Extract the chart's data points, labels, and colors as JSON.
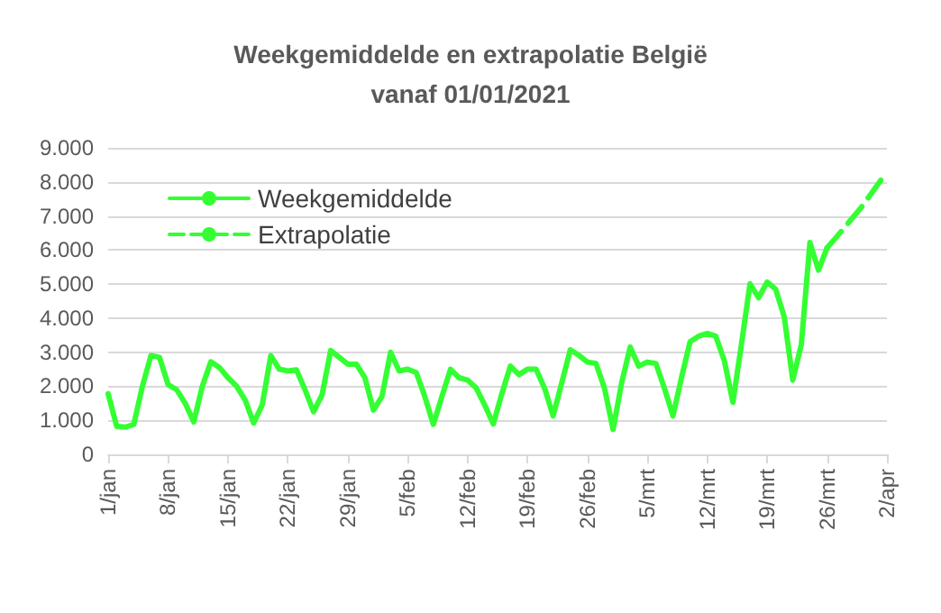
{
  "chart_data": {
    "type": "line",
    "title": "Weekgemiddelde en extrapolatie België\nvanaf 01/01/2021",
    "categories": [
      "1/jan",
      null,
      null,
      null,
      null,
      null,
      null,
      "8/jan",
      null,
      null,
      null,
      null,
      null,
      null,
      "15/jan",
      null,
      null,
      null,
      null,
      null,
      null,
      "22/jan",
      null,
      null,
      null,
      null,
      null,
      null,
      "29/jan",
      null,
      null,
      null,
      null,
      null,
      null,
      "5/feb",
      null,
      null,
      null,
      null,
      null,
      null,
      "12/feb",
      null,
      null,
      null,
      null,
      null,
      null,
      "19/feb",
      null,
      null,
      null,
      null,
      null,
      null,
      "26/feb",
      null,
      null,
      null,
      null,
      null,
      null,
      "5/mrt",
      null,
      null,
      null,
      null,
      null,
      null,
      "12/mrt",
      null,
      null,
      null,
      null,
      null,
      null,
      "19/mrt",
      null,
      null,
      null,
      null,
      null,
      null,
      "26/mrt",
      null,
      null,
      null,
      null,
      null,
      null,
      "2/apr"
    ],
    "series": [
      {
        "name": "Weekgemiddelde",
        "color": "#33ff33",
        "line_style": "solid",
        "values": [
          1780,
          820,
          800,
          880,
          2000,
          2900,
          2850,
          2050,
          1900,
          1500,
          950,
          2000,
          2720,
          2550,
          2250,
          2000,
          1600,
          920,
          1450,
          2900,
          2500,
          2450,
          2480,
          1900,
          1250,
          1750,
          3050,
          2850,
          2650,
          2650,
          2250,
          1300,
          1700,
          3000,
          2450,
          2500,
          2400,
          1700,
          880,
          1700,
          2500,
          2250,
          2180,
          1950,
          1450,
          890,
          1780,
          2590,
          2340,
          2500,
          2500,
          1940,
          1130,
          2100,
          3070,
          2910,
          2710,
          2670,
          1940,
          730,
          2100,
          3150,
          2590,
          2710,
          2670,
          1940,
          1130,
          2260,
          3310,
          3470,
          3550,
          3470,
          2750,
          1530,
          3230,
          5010,
          4600,
          5060,
          4850,
          4040,
          2180,
          3230,
          6220,
          5410,
          6060,
          null,
          null,
          null,
          null,
          null,
          null,
          null
        ]
      },
      {
        "name": "Extrapolatie",
        "color": "#33ff33",
        "line_style": "dashed",
        "values": [
          null,
          null,
          null,
          null,
          null,
          null,
          null,
          null,
          null,
          null,
          null,
          null,
          null,
          null,
          null,
          null,
          null,
          null,
          null,
          null,
          null,
          null,
          null,
          null,
          null,
          null,
          null,
          null,
          null,
          null,
          null,
          null,
          null,
          null,
          null,
          null,
          null,
          null,
          null,
          null,
          null,
          null,
          null,
          null,
          null,
          null,
          null,
          null,
          null,
          null,
          null,
          null,
          null,
          null,
          null,
          null,
          null,
          null,
          null,
          null,
          null,
          null,
          null,
          null,
          null,
          null,
          null,
          null,
          null,
          null,
          null,
          null,
          null,
          null,
          null,
          null,
          null,
          null,
          null,
          null,
          null,
          null,
          null,
          null,
          6060,
          6350,
          6650,
          6950,
          7250,
          7600,
          7950,
          8300
        ]
      }
    ],
    "ylim": [
      0,
      9000
    ],
    "yticks": [
      {
        "value": 0,
        "label": "0"
      },
      {
        "value": 1000,
        "label": "1.000"
      },
      {
        "value": 2000,
        "label": "2.000"
      },
      {
        "value": 3000,
        "label": "3.000"
      },
      {
        "value": 4000,
        "label": "4.000"
      },
      {
        "value": 5000,
        "label": "5.000"
      },
      {
        "value": 6000,
        "label": "6.000"
      },
      {
        "value": 7000,
        "label": "7.000"
      },
      {
        "value": 8000,
        "label": "8.000"
      },
      {
        "value": 9000,
        "label": "9.000"
      }
    ],
    "grid": "y",
    "legend": "top left",
    "marker": "none"
  }
}
